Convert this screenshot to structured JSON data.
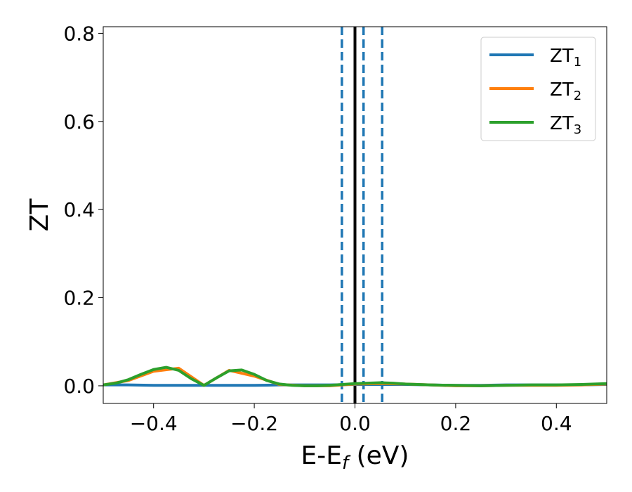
{
  "chart_data": {
    "type": "line",
    "xlabel": "E-E",
    "xlabel_sub": "f",
    "xlabel_unit": " (eV)",
    "ylabel": "ZT",
    "xlim": [
      -0.5,
      0.5
    ],
    "ylim": [
      -0.04,
      0.815
    ],
    "xticks": [
      -0.4,
      -0.2,
      0.0,
      0.2,
      0.4
    ],
    "xtick_labels": [
      "−0.4",
      "−0.2",
      "0.0",
      "0.2",
      "0.4"
    ],
    "yticks": [
      0.0,
      0.2,
      0.4,
      0.6,
      0.8
    ],
    "ytick_labels": [
      "0.0",
      "0.2",
      "0.4",
      "0.6",
      "0.8"
    ],
    "grid": false,
    "legend_position": "top-right",
    "vertical_lines": [
      {
        "x": -0.026,
        "style": "dashed",
        "color": "#1f77b4"
      },
      {
        "x": 0.0,
        "style": "solid",
        "color": "#000000"
      },
      {
        "x": 0.017,
        "style": "dashed",
        "color": "#1f77b4"
      },
      {
        "x": 0.054,
        "style": "dashed",
        "color": "#1f77b4"
      }
    ],
    "series": [
      {
        "name": "ZT",
        "name_sub": "1",
        "color": "#1f77b4",
        "x": [
          -0.5,
          -0.45,
          -0.4,
          -0.35,
          -0.3,
          -0.25,
          -0.2,
          -0.15,
          -0.1,
          -0.05,
          0.0,
          0.05,
          0.1,
          0.15,
          0.2,
          0.25,
          0.3,
          0.35,
          0.4,
          0.45,
          0.5
        ],
        "y": [
          0.002,
          0.002,
          0.001,
          0.001,
          0.001,
          0.001,
          0.001,
          0.002,
          0.002,
          0.002,
          0.003,
          0.003,
          0.003,
          0.002,
          0.001,
          0.001,
          0.002,
          0.002,
          0.002,
          0.002,
          0.003
        ]
      },
      {
        "name": "ZT",
        "name_sub": "2",
        "color": "#ff7f0e",
        "x": [
          -0.5,
          -0.45,
          -0.4,
          -0.35,
          -0.3,
          -0.25,
          -0.2,
          -0.15,
          -0.1,
          -0.05,
          0.0,
          0.05,
          0.1,
          0.15,
          0.2,
          0.25,
          0.3,
          0.35,
          0.4,
          0.45,
          0.5
        ],
        "y": [
          0.002,
          0.012,
          0.033,
          0.04,
          0.001,
          0.035,
          0.022,
          0.003,
          0.0,
          0.0,
          0.004,
          0.005,
          0.004,
          0.002,
          0.0,
          0.0,
          0.001,
          0.001,
          0.001,
          0.002,
          0.004
        ]
      },
      {
        "name": "ZT",
        "name_sub": "3",
        "color": "#2ca02c",
        "x": [
          -0.5,
          -0.475,
          -0.45,
          -0.425,
          -0.4,
          -0.375,
          -0.35,
          -0.325,
          -0.3,
          -0.275,
          -0.25,
          -0.225,
          -0.2,
          -0.175,
          -0.15,
          -0.125,
          -0.1,
          -0.075,
          -0.05,
          -0.025,
          0.0,
          0.025,
          0.05,
          0.075,
          0.1,
          0.15,
          0.2,
          0.25,
          0.3,
          0.35,
          0.4,
          0.45,
          0.5
        ],
        "y": [
          0.002,
          0.006,
          0.014,
          0.026,
          0.037,
          0.042,
          0.035,
          0.016,
          0.001,
          0.018,
          0.034,
          0.036,
          0.026,
          0.012,
          0.004,
          0.001,
          0.0,
          0.0,
          0.001,
          0.003,
          0.005,
          0.006,
          0.007,
          0.006,
          0.004,
          0.002,
          0.001,
          0.0,
          0.001,
          0.002,
          0.002,
          0.003,
          0.005
        ]
      }
    ]
  }
}
